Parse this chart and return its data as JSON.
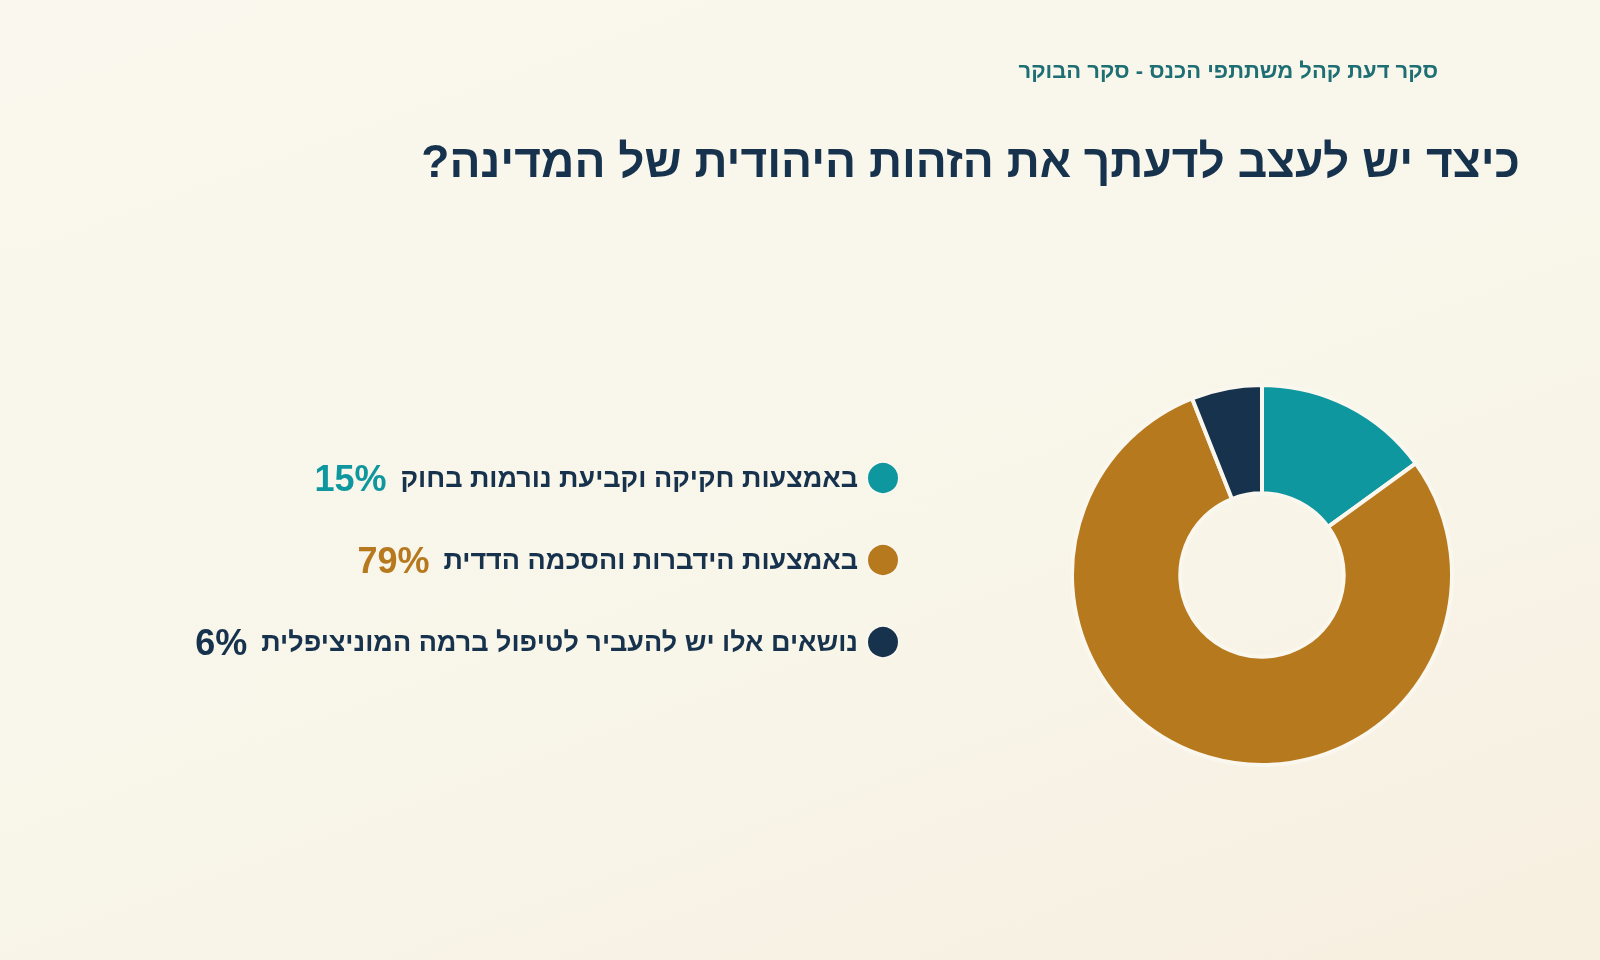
{
  "chart_data": {
    "type": "donut",
    "title": "כיצד יש לעצב לדעתך את הזהות היהודית של המדינה?",
    "subtitle": "סקר דעת קהל משתתפי הכנס - סקר הבוקר",
    "categories": [
      "באמצעות חקיקה וקביעת נורמות בחוק",
      "באמצעות הידברות והסכמה הדדית",
      "נושאים אלו יש להעביר לטיפול ברמה המוניציפלית"
    ],
    "values": [
      15,
      79,
      6
    ],
    "colors": [
      "#0e979e",
      "#b7791e",
      "#17324d"
    ],
    "value_labels": [
      "15%",
      "79%",
      "6%"
    ],
    "legend": "left"
  }
}
